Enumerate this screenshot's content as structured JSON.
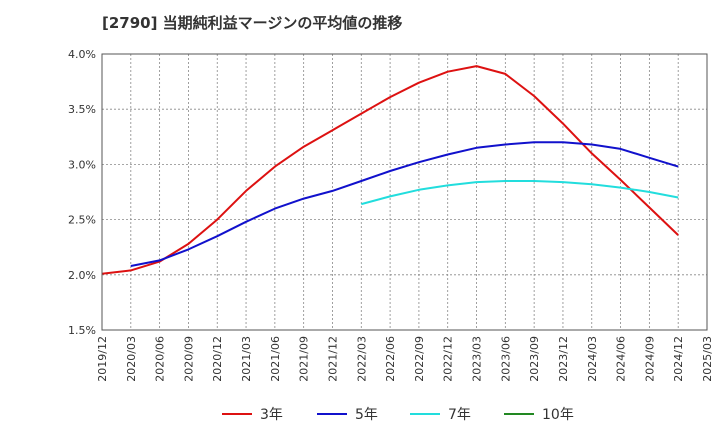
{
  "chart_data": {
    "type": "line",
    "title": "[2790]  当期純利益マージンの平均値の推移",
    "xlabel": "",
    "ylabel": "",
    "x": [
      "2019/12",
      "2020/03",
      "2020/06",
      "2020/09",
      "2020/12",
      "2021/03",
      "2021/06",
      "2021/09",
      "2021/12",
      "2022/03",
      "2022/06",
      "2022/09",
      "2022/12",
      "2023/03",
      "2023/06",
      "2023/09",
      "2023/12",
      "2024/03",
      "2024/06",
      "2024/09",
      "2024/12",
      "2025/03"
    ],
    "yticks": [
      "1.5%",
      "2.0%",
      "2.5%",
      "3.0%",
      "3.5%",
      "4.0%"
    ],
    "ylim": [
      1.5,
      4.0
    ],
    "grid": true,
    "legend_position": "bottom",
    "series": [
      {
        "name": "3年",
        "color": "#dd1111",
        "values": [
          2.01,
          2.04,
          2.12,
          2.28,
          2.5,
          2.76,
          2.98,
          3.16,
          3.31,
          3.46,
          3.61,
          3.74,
          3.84,
          3.89,
          3.82,
          3.62,
          3.37,
          3.1,
          2.86,
          2.61,
          2.36,
          null
        ]
      },
      {
        "name": "5年",
        "color": "#1111cc",
        "values": [
          null,
          2.08,
          2.13,
          2.23,
          2.35,
          2.48,
          2.6,
          2.69,
          2.76,
          2.85,
          2.94,
          3.02,
          3.09,
          3.15,
          3.18,
          3.2,
          3.2,
          3.18,
          3.14,
          3.06,
          2.98,
          null
        ]
      },
      {
        "name": "7年",
        "color": "#22dddd",
        "values": [
          null,
          null,
          null,
          null,
          null,
          null,
          null,
          null,
          null,
          2.64,
          2.71,
          2.77,
          2.81,
          2.84,
          2.85,
          2.85,
          2.84,
          2.82,
          2.79,
          2.75,
          2.7,
          null
        ]
      },
      {
        "name": "10年",
        "color": "#228822",
        "values": [
          null,
          null,
          null,
          null,
          null,
          null,
          null,
          null,
          null,
          null,
          null,
          null,
          null,
          null,
          null,
          null,
          null,
          null,
          null,
          null,
          null,
          null
        ]
      }
    ]
  }
}
